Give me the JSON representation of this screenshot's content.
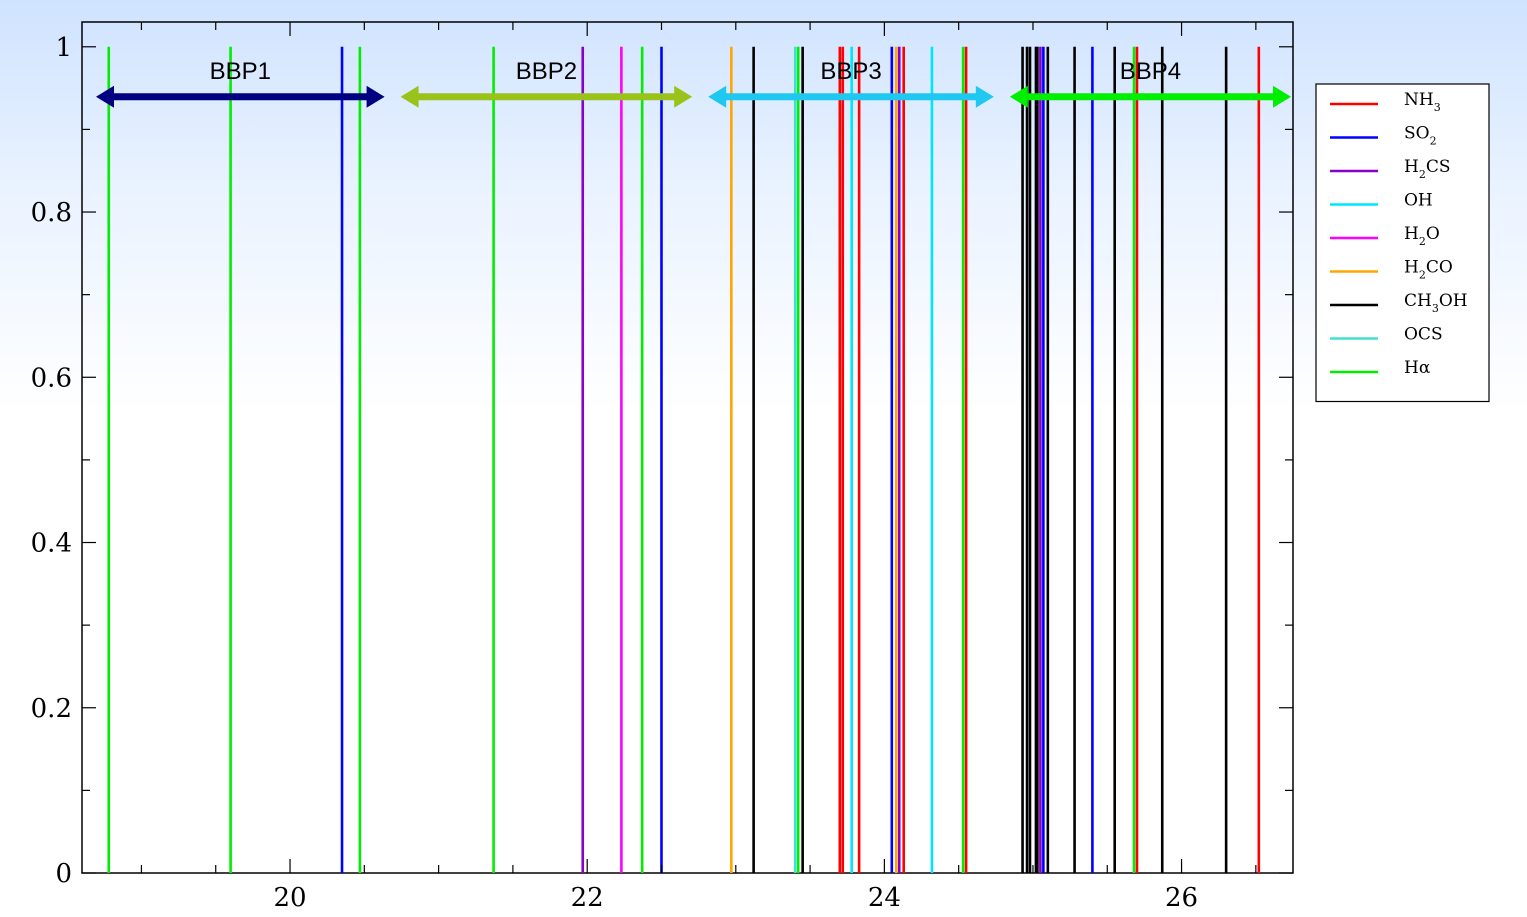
{
  "chart_data": {
    "type": "line",
    "title": "",
    "xlabel": "",
    "ylabel": "",
    "xlim": [
      18.6,
      26.75
    ],
    "ylim": [
      0,
      1.03
    ],
    "x_ticks": [
      20,
      22,
      24,
      26
    ],
    "x_tick_labels": [
      "20",
      "22",
      "24",
      "26"
    ],
    "y_ticks": [
      0,
      0.2,
      0.4,
      0.6,
      0.8,
      1
    ],
    "y_tick_labels": [
      "0",
      "0.2",
      "0.4",
      "0.6",
      "0.8",
      "1"
    ],
    "grid": false,
    "legend_position": "right",
    "series": [
      {
        "name": "NH3",
        "label_main": "NH",
        "label_sub": "3",
        "label_tail": "",
        "color": "#ff0000",
        "x": [
          23.7,
          23.72,
          23.83,
          24.13,
          24.55,
          25.7,
          26.52
        ]
      },
      {
        "name": "SO2",
        "label_main": "SO",
        "label_sub": "2",
        "label_tail": "",
        "color": "#0000ff",
        "x": [
          20.35,
          22.5,
          24.05,
          25.07,
          25.4
        ]
      },
      {
        "name": "H2CS",
        "label_main": "H",
        "label_sub": "2",
        "label_tail": "CS",
        "color": "#8800cc",
        "x": [
          21.97,
          24.1,
          25.05
        ]
      },
      {
        "name": "OH",
        "label_main": "OH",
        "label_sub": "",
        "label_tail": "",
        "color": "#00e5ff",
        "x": [
          23.78,
          24.32
        ]
      },
      {
        "name": "H2O",
        "label_main": "H",
        "label_sub": "2",
        "label_tail": "O",
        "color": "#ff00ff",
        "x": [
          22.23
        ]
      },
      {
        "name": "H2CO",
        "label_main": "H",
        "label_sub": "2",
        "label_tail": "CO",
        "color": "#ffa500",
        "x": [
          22.97,
          24.08
        ]
      },
      {
        "name": "CH3OH",
        "label_main": "CH",
        "label_sub": "3",
        "label_tail": "OH",
        "color": "#000000",
        "x": [
          23.12,
          23.45,
          24.93,
          24.96,
          24.98,
          25.02,
          25.03,
          25.1,
          25.28,
          25.55,
          25.87,
          26.3
        ]
      },
      {
        "name": "OCS",
        "label_main": "OCS",
        "label_sub": "",
        "label_tail": "",
        "color": "#40e0d0",
        "x": [
          23.4
        ]
      },
      {
        "name": "Hα",
        "label_main": "Hα",
        "label_sub": "",
        "label_tail": "",
        "color": "#00ee00",
        "x": [
          18.78,
          19.6,
          20.47,
          21.37,
          22.37,
          23.42,
          24.53,
          25.68
        ]
      }
    ],
    "bands": [
      {
        "label": "BBP1",
        "x_start": 18.6,
        "x_end": 20.65,
        "color": "#000080"
      },
      {
        "label": "BBP2",
        "x_start": 20.65,
        "x_end": 22.72,
        "color": "#99c21a"
      },
      {
        "label": "BBP3",
        "x_start": 22.72,
        "x_end": 24.75,
        "color": "#1ec8f0"
      },
      {
        "label": "BBP4",
        "x_start": 24.75,
        "x_end": 26.75,
        "color": "#00ee00"
      }
    ]
  }
}
